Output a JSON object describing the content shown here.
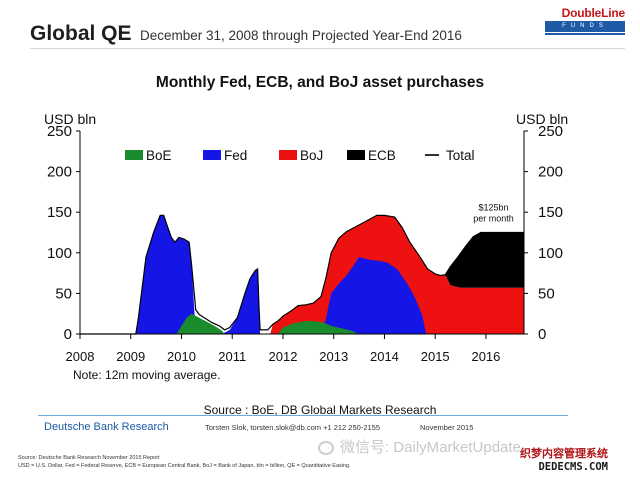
{
  "header": {
    "title": "Global QE",
    "subtitle": "December 31, 2008 through Projected Year-End 2016"
  },
  "logo": {
    "brand": "DoubleLine",
    "sub": "FUNDS"
  },
  "chart_data": {
    "type": "area",
    "title": "Monthly Fed, ECB, and BoJ asset purchases",
    "ylabel_left": "USD bln",
    "ylabel_right": "USD bln",
    "ylim": [
      0,
      250
    ],
    "yticks": [
      0,
      50,
      100,
      150,
      200,
      250
    ],
    "xlim": [
      2008,
      2016.75
    ],
    "xticks": [
      2008,
      2009,
      2010,
      2011,
      2012,
      2013,
      2014,
      2015,
      2016
    ],
    "grid": false,
    "legend": {
      "placement": "top-left",
      "entries": [
        {
          "name": "BoE",
          "color": "#1a8c2e",
          "kind": "swatch"
        },
        {
          "name": "Fed",
          "color": "#1515e6",
          "kind": "swatch"
        },
        {
          "name": "BoJ",
          "color": "#ee1111",
          "kind": "swatch"
        },
        {
          "name": "ECB",
          "color": "#000000",
          "kind": "swatch"
        },
        {
          "name": "Total",
          "color": "#000000",
          "kind": "line"
        }
      ]
    },
    "annotation": {
      "line1": "$125bn",
      "line2": "per month",
      "x": 2016.15,
      "y": 152
    },
    "series": [
      {
        "name": "Total",
        "color": "#000000",
        "points": [
          [
            2008,
            0
          ],
          [
            2009.1,
            0
          ],
          [
            2009.15,
            20
          ],
          [
            2009.3,
            95
          ],
          [
            2009.45,
            125
          ],
          [
            2009.58,
            146
          ],
          [
            2009.65,
            146
          ],
          [
            2009.72,
            133
          ],
          [
            2009.8,
            119
          ],
          [
            2009.87,
            113
          ],
          [
            2009.95,
            119
          ],
          [
            2010.05,
            117
          ],
          [
            2010.15,
            113
          ],
          [
            2010.2,
            85
          ],
          [
            2010.28,
            30
          ],
          [
            2010.35,
            24
          ],
          [
            2010.45,
            20
          ],
          [
            2010.6,
            14
          ],
          [
            2010.75,
            10
          ],
          [
            2010.85,
            5
          ],
          [
            2010.95,
            8
          ],
          [
            2011.1,
            20
          ],
          [
            2011.25,
            50
          ],
          [
            2011.35,
            68
          ],
          [
            2011.45,
            78
          ],
          [
            2011.5,
            80
          ],
          [
            2011.53,
            30
          ],
          [
            2011.55,
            5
          ],
          [
            2011.7,
            5
          ],
          [
            2011.8,
            12
          ],
          [
            2011.9,
            16
          ],
          [
            2012.0,
            22
          ],
          [
            2012.15,
            28
          ],
          [
            2012.3,
            35
          ],
          [
            2012.45,
            36
          ],
          [
            2012.6,
            38
          ],
          [
            2012.75,
            46
          ],
          [
            2012.85,
            70
          ],
          [
            2012.95,
            100
          ],
          [
            2013.1,
            118
          ],
          [
            2013.25,
            126
          ],
          [
            2013.4,
            131
          ],
          [
            2013.55,
            136
          ],
          [
            2013.7,
            141
          ],
          [
            2013.85,
            146
          ],
          [
            2014.0,
            146
          ],
          [
            2014.2,
            144
          ],
          [
            2014.35,
            131
          ],
          [
            2014.5,
            113
          ],
          [
            2014.7,
            95
          ],
          [
            2014.85,
            80
          ],
          [
            2015.0,
            74
          ],
          [
            2015.1,
            72
          ],
          [
            2015.2,
            73
          ],
          [
            2015.3,
            83
          ],
          [
            2015.45,
            95
          ],
          [
            2015.6,
            108
          ],
          [
            2015.75,
            120
          ],
          [
            2015.9,
            125
          ],
          [
            2016.1,
            125
          ],
          [
            2016.75,
            125
          ]
        ]
      },
      {
        "name": "Fed",
        "color": "#1515e6",
        "points": [
          [
            2009.1,
            0
          ],
          [
            2009.15,
            20
          ],
          [
            2009.3,
            95
          ],
          [
            2009.45,
            125
          ],
          [
            2009.58,
            146
          ],
          [
            2009.65,
            146
          ],
          [
            2009.72,
            133
          ],
          [
            2009.8,
            119
          ],
          [
            2009.87,
            113
          ],
          [
            2009.95,
            119
          ],
          [
            2010.05,
            117
          ],
          [
            2010.15,
            113
          ],
          [
            2010.2,
            85
          ],
          [
            2010.28,
            0
          ],
          [
            2010.8,
            0
          ],
          [
            2010.95,
            5
          ],
          [
            2011.1,
            20
          ],
          [
            2011.25,
            50
          ],
          [
            2011.35,
            68
          ],
          [
            2011.45,
            78
          ],
          [
            2011.5,
            80
          ],
          [
            2011.53,
            30
          ],
          [
            2011.55,
            0
          ],
          [
            2012.75,
            0
          ],
          [
            2012.85,
            20
          ],
          [
            2012.95,
            50
          ],
          [
            2013.1,
            62
          ],
          [
            2013.25,
            72
          ],
          [
            2013.4,
            85
          ],
          [
            2013.5,
            95
          ],
          [
            2013.6,
            93
          ],
          [
            2013.75,
            91
          ],
          [
            2013.9,
            90
          ],
          [
            2014.05,
            88
          ],
          [
            2014.25,
            80
          ],
          [
            2014.45,
            62
          ],
          [
            2014.6,
            45
          ],
          [
            2014.75,
            22
          ],
          [
            2014.82,
            0
          ]
        ]
      },
      {
        "name": "BoE",
        "color": "#1a8c2e",
        "points": [
          [
            2009.9,
            0
          ],
          [
            2010.0,
            10
          ],
          [
            2010.1,
            20
          ],
          [
            2010.2,
            25
          ],
          [
            2010.35,
            20
          ],
          [
            2010.5,
            15
          ],
          [
            2010.65,
            10
          ],
          [
            2010.8,
            4
          ],
          [
            2010.85,
            0
          ],
          [
            2011.9,
            0
          ],
          [
            2012.0,
            8
          ],
          [
            2012.2,
            13
          ],
          [
            2012.45,
            16
          ],
          [
            2012.6,
            16
          ],
          [
            2012.8,
            14
          ],
          [
            2012.95,
            10
          ],
          [
            2013.15,
            7
          ],
          [
            2013.35,
            4
          ],
          [
            2013.5,
            0
          ]
        ]
      },
      {
        "name": "BoJ",
        "color": "#ee1111",
        "points": [
          [
            2011.75,
            0
          ],
          [
            2011.8,
            12
          ],
          [
            2011.9,
            16
          ],
          [
            2012.0,
            22
          ],
          [
            2012.15,
            28
          ],
          [
            2012.3,
            35
          ],
          [
            2012.45,
            36
          ],
          [
            2012.6,
            38
          ],
          [
            2012.75,
            46
          ],
          [
            2012.85,
            70
          ],
          [
            2012.95,
            100
          ],
          [
            2013.1,
            118
          ],
          [
            2013.25,
            126
          ],
          [
            2013.4,
            131
          ],
          [
            2013.55,
            136
          ],
          [
            2013.7,
            141
          ],
          [
            2013.85,
            146
          ],
          [
            2014.0,
            146
          ],
          [
            2014.2,
            144
          ],
          [
            2014.35,
            131
          ],
          [
            2014.5,
            113
          ],
          [
            2014.7,
            95
          ],
          [
            2014.85,
            80
          ],
          [
            2015.0,
            74
          ],
          [
            2015.1,
            72
          ],
          [
            2015.2,
            73
          ],
          [
            2015.3,
            60
          ],
          [
            2015.5,
            57
          ],
          [
            2016.75,
            57
          ]
        ]
      },
      {
        "name": "ECB",
        "color": "#000000",
        "points": [
          [
            2015.2,
            73
          ],
          [
            2015.3,
            83
          ],
          [
            2015.45,
            95
          ],
          [
            2015.6,
            108
          ],
          [
            2015.75,
            120
          ],
          [
            2015.9,
            125
          ],
          [
            2016.1,
            125
          ],
          [
            2016.75,
            125
          ],
          [
            2016.75,
            57
          ],
          [
            2015.5,
            57
          ],
          [
            2015.3,
            60
          ]
        ]
      }
    ]
  },
  "note": "Note: 12m moving average.",
  "source": "Source : BoE, DB Global Markets Research",
  "footer": {
    "org": "Deutsche Bank Research",
    "contact": "Torsten Slok, torsten.slok@db.com  +1 212 250-2155",
    "date": "November 2015",
    "fn1": "Source: Deutsche Bank Research November 2015 Report",
    "fn2": "USD = U.S. Dollar, Fed = Federal Reserve, ECB = European Central Bank, BoJ = Bank of Japan, bln = billion, QE = Quantitative Easing."
  },
  "watermark": {
    "text": "微信号: DailyMarketUpdate"
  },
  "site": {
    "line1": "织梦内容管理系统",
    "line2": "DEDECMS.COM"
  }
}
